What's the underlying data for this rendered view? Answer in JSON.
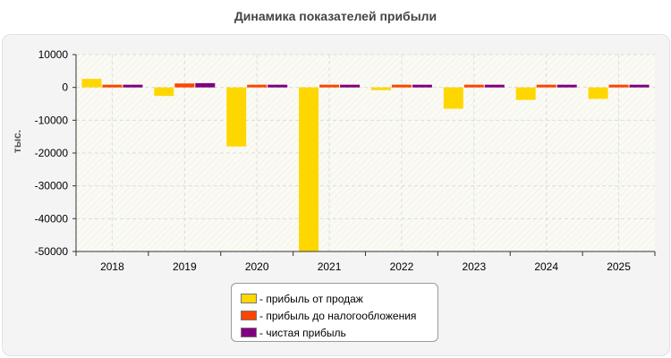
{
  "chart_data": {
    "type": "bar",
    "title": "Динамика показателей прибыли",
    "ylabel": "тыс.",
    "xlabel": "",
    "ylim": [
      -50000,
      10000
    ],
    "yticks": [
      10000,
      0,
      -10000,
      -20000,
      -30000,
      -40000,
      -50000
    ],
    "grid": true,
    "legend_position": "bottom",
    "categories": [
      "2018",
      "2019",
      "2020",
      "2021",
      "2022",
      "2023",
      "2024",
      "2025"
    ],
    "series": [
      {
        "name": "- прибыль от продаж",
        "color": "#FFD700",
        "values": [
          2600,
          -2600,
          -18000,
          -50000,
          -500,
          -6500,
          -3800,
          -3500
        ]
      },
      {
        "name": "- прибыль до налогообложения",
        "color": "#FF4500",
        "values": [
          500,
          1200,
          500,
          500,
          500,
          500,
          800,
          500
        ]
      },
      {
        "name": "- чистая прибыль",
        "color": "#800080",
        "values": [
          400,
          1300,
          400,
          400,
          400,
          400,
          800,
          400
        ]
      }
    ]
  }
}
